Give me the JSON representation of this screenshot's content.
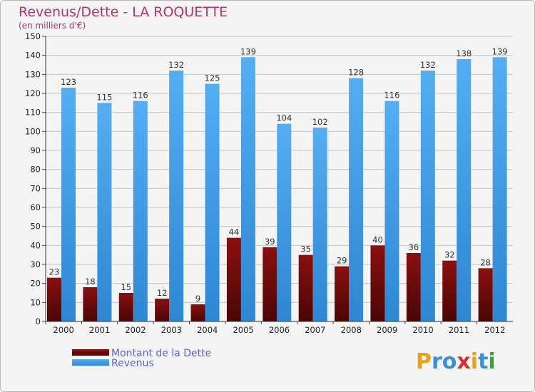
{
  "chart_data": {
    "type": "bar",
    "title": "Revenus/Dette - LA ROQUETTE",
    "subtitle": "(en milliers d'€)",
    "categories": [
      "2000",
      "2001",
      "2002",
      "2003",
      "2004",
      "2005",
      "2006",
      "2007",
      "2008",
      "2009",
      "2010",
      "2011",
      "2012"
    ],
    "series": [
      {
        "name": "Montant de la Dette",
        "color": "#7a0a0a",
        "values": [
          23,
          18,
          15,
          12,
          9,
          44,
          39,
          35,
          29,
          40,
          36,
          32,
          28
        ]
      },
      {
        "name": "Revenus",
        "color": "#3d9ae8",
        "values": [
          123,
          115,
          116,
          132,
          125,
          139,
          104,
          102,
          128,
          116,
          132,
          138,
          139
        ]
      }
    ],
    "ylim": [
      0,
      150
    ],
    "ystep": 10,
    "grid": true,
    "legend": "bottom-left"
  },
  "logo": {
    "letters": [
      "P",
      "r",
      "o",
      "x",
      "i",
      "t",
      "i"
    ],
    "colors": [
      "#e8a020",
      "#3a8fd8",
      "#3a8fd8",
      "#d83030",
      "#e8a020",
      "#3a8fd8",
      "#3aa040"
    ]
  }
}
